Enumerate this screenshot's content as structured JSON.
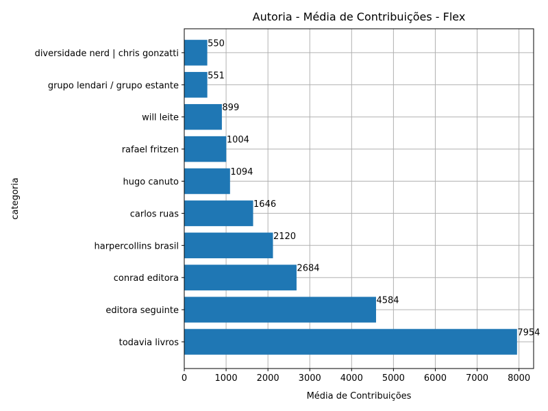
{
  "chart_data": {
    "type": "bar",
    "orientation": "horizontal",
    "title": "Autoria - Média de Contribuições - Flex",
    "xlabel": "Média de Contribuições",
    "ylabel": "categoria",
    "categories": [
      "todavia livros",
      "editora seguinte",
      "conrad editora",
      "harpercollins brasil",
      "carlos ruas",
      "hugo canuto",
      "rafael fritzen",
      "will leite",
      "grupo lendari / grupo estante",
      "diversidade nerd | chris gonzatti"
    ],
    "values": [
      7954,
      4584,
      2684,
      2120,
      1646,
      1094,
      1004,
      899,
      551,
      550
    ],
    "data_labels": [
      "7954",
      "4584",
      "2684",
      "2120",
      "1646",
      "1094",
      "1004",
      "899",
      "551",
      "550"
    ],
    "xlim": [
      0,
      8350
    ],
    "xticks": [
      0,
      1000,
      2000,
      3000,
      4000,
      5000,
      6000,
      7000,
      8000
    ],
    "xtick_labels": [
      "0",
      "1000",
      "2000",
      "3000",
      "4000",
      "5000",
      "6000",
      "7000",
      "8000"
    ],
    "grid": true,
    "bar_color": "#1f77b4"
  }
}
